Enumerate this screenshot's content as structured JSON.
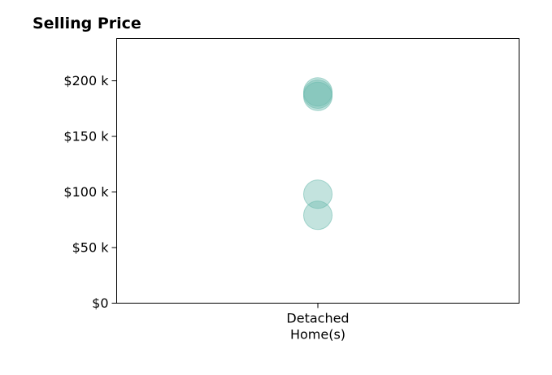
{
  "chart_data": {
    "type": "scatter",
    "title": "Selling Price",
    "xlabel": "",
    "ylabel": "",
    "categories": [
      "Detached\nHome(s)"
    ],
    "y_ticks": [
      {
        "value": 0,
        "label": "$0"
      },
      {
        "value": 50000,
        "label": "$50 k"
      },
      {
        "value": 100000,
        "label": "$100 k"
      },
      {
        "value": 150000,
        "label": "$150 k"
      },
      {
        "value": 200000,
        "label": "$200 k"
      }
    ],
    "ylim": [
      0,
      238000
    ],
    "grid": false,
    "legend": "none",
    "series": [
      {
        "color": "#69b9ad",
        "points": [
          {
            "category": "Detached\nHome(s)",
            "y": 190000
          },
          {
            "category": "Detached\nHome(s)",
            "y": 188000
          },
          {
            "category": "Detached\nHome(s)",
            "y": 186000
          },
          {
            "category": "Detached\nHome(s)",
            "y": 98000
          },
          {
            "category": "Detached\nHome(s)",
            "y": 79000
          }
        ]
      }
    ]
  }
}
